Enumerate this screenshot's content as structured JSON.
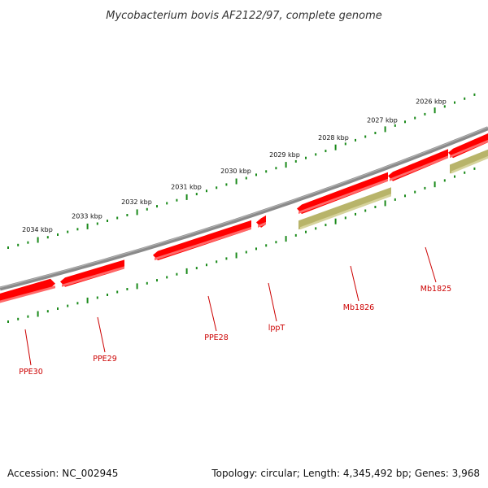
{
  "title": "Mycobacterium bovis AF2122/97, complete genome",
  "footer": {
    "accession": "Accession: NC_002945",
    "summary": "Topology: circular; Length: 4,345,492 bp; Genes: 3,968"
  },
  "colors": {
    "backbone": "#8a8a8a",
    "gene_forward": "#ff0000",
    "gene_forward_shade": "#ff6a6a",
    "gene_reverse": "#b8b46a",
    "gene_reverse_shade": "#d6d39c",
    "ticks": "#1a8a1a",
    "label": "#cc0000"
  },
  "scale": {
    "labels": [
      "2034 kbp",
      "2033 kbp",
      "2032 kbp",
      "2031 kbp",
      "2030 kbp",
      "2029 kbp",
      "2028 kbp",
      "2027 kbp",
      "2026 kbp"
    ]
  },
  "genes": [
    {
      "name": "PPE30",
      "strand": "forward"
    },
    {
      "name": "PPE29",
      "strand": "forward"
    },
    {
      "name": "PPE28",
      "strand": "forward"
    },
    {
      "name": "lppT",
      "strand": "forward"
    },
    {
      "name": "Mb1826",
      "strand": "reverse"
    },
    {
      "name": "Mb1825",
      "strand": "forward"
    }
  ]
}
